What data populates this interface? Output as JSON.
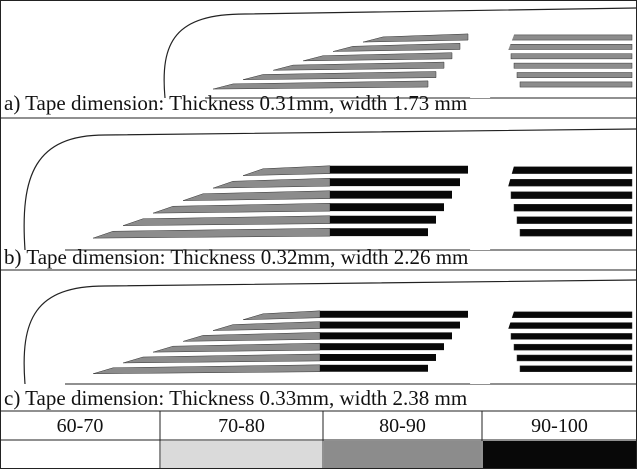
{
  "panels": [
    {
      "caption": "a) Tape dimension: Thickness 0.31mm, width 1.73 mm"
    },
    {
      "caption": "b) Tape dimension: Thickness 0.32mm, width 2.26 mm"
    },
    {
      "caption": "c) Tape dimension: Thickness 0.33mm, width 2.38 mm"
    }
  ],
  "legend": {
    "items": [
      {
        "label": "60-70",
        "color": "#ffffff"
      },
      {
        "label": "70-80",
        "color": "#dadada"
      },
      {
        "label": "80-90",
        "color": "#8c8c8c"
      },
      {
        "label": "90-100",
        "color": "#080808"
      }
    ]
  }
}
